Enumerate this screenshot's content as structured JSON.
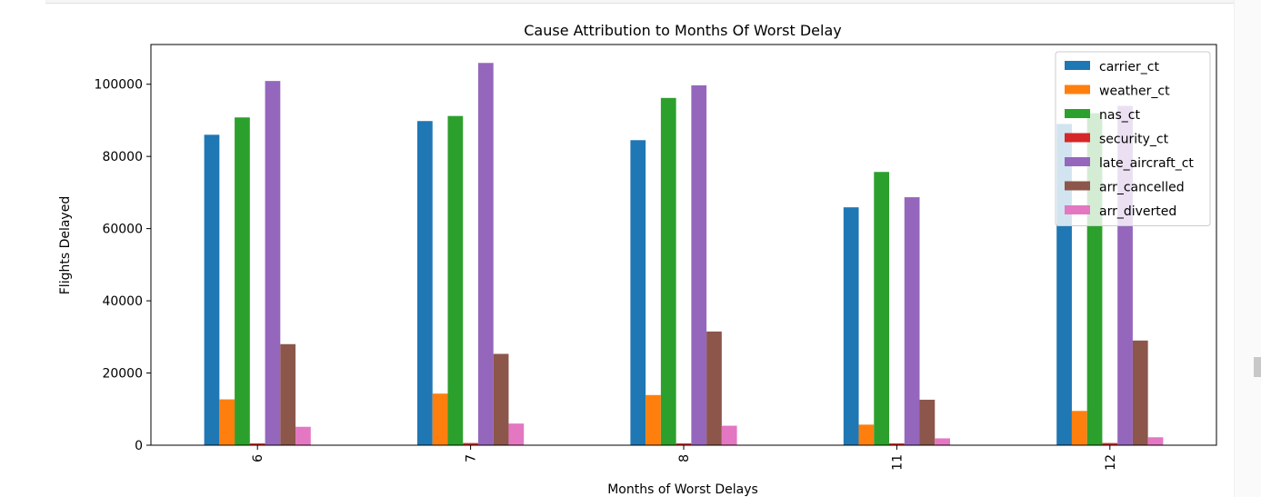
{
  "chart_data": {
    "type": "bar",
    "title": "Cause Attribution to Months Of Worst Delay",
    "xlabel": "Months of Worst Delays",
    "ylabel": "Flights Delayed",
    "categories": [
      "6",
      "7",
      "8",
      "11",
      "12"
    ],
    "ylim": [
      0,
      111000
    ],
    "yticks": [
      0,
      20000,
      40000,
      60000,
      80000,
      100000
    ],
    "ytick_labels": [
      "0",
      "20000",
      "40000",
      "60000",
      "80000",
      "100000"
    ],
    "legend_position": "top-right",
    "grid": false,
    "series": [
      {
        "name": "carrier_ct",
        "color": "#1f77b4",
        "values": [
          86000,
          89800,
          84500,
          65900,
          89000
        ]
      },
      {
        "name": "weather_ct",
        "color": "#ff7f0e",
        "values": [
          12700,
          14300,
          13900,
          5700,
          9500
        ]
      },
      {
        "name": "nas_ct",
        "color": "#2ca02c",
        "values": [
          90800,
          91200,
          96200,
          75700,
          92000
        ]
      },
      {
        "name": "security_ct",
        "color": "#d62728",
        "values": [
          500,
          600,
          500,
          500,
          600
        ]
      },
      {
        "name": "late_aircraft_ct",
        "color": "#9467bd",
        "values": [
          100900,
          105900,
          99700,
          68700,
          94000
        ]
      },
      {
        "name": "arr_cancelled",
        "color": "#8c564b",
        "values": [
          28000,
          25300,
          31500,
          12600,
          29000
        ]
      },
      {
        "name": "arr_diverted",
        "color": "#e377c2",
        "values": [
          5100,
          6000,
          5400,
          1900,
          2200
        ]
      }
    ]
  }
}
